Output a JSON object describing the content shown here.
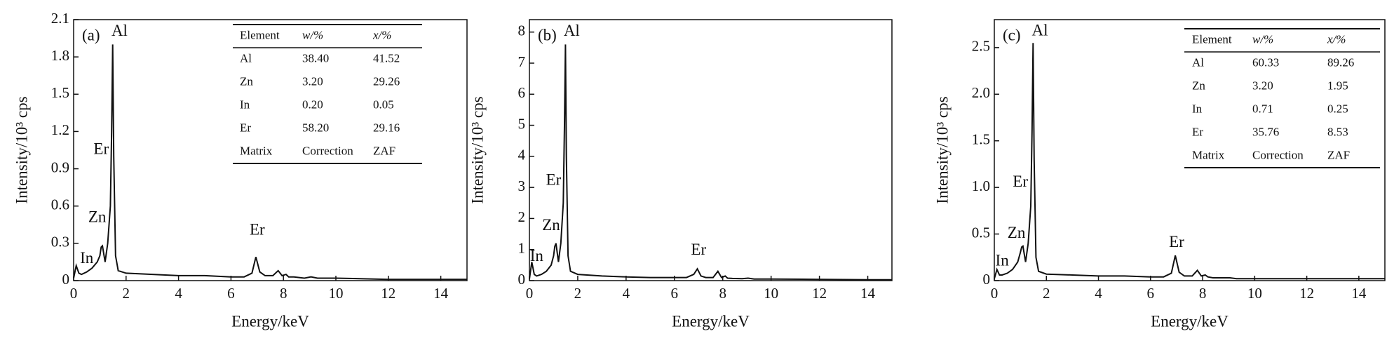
{
  "chart_data": [
    {
      "type": "line",
      "panel_label": "(a)",
      "x_label": "Energy/keV",
      "y_label": "Intensity/10³ cps",
      "color": "#111111",
      "x": [
        0,
        0.1,
        0.2,
        0.3,
        0.5,
        0.7,
        0.9,
        1.0,
        1.05,
        1.1,
        1.2,
        1.3,
        1.4,
        1.45,
        1.49,
        1.53,
        1.6,
        1.7,
        2,
        3,
        4,
        5,
        6,
        6.5,
        6.8,
        6.95,
        7.1,
        7.3,
        7.6,
        7.8,
        7.95,
        8.1,
        8.2,
        8.4,
        8.8,
        9.05,
        9.3,
        10,
        12,
        14,
        15
      ],
      "values": [
        0.02,
        0.12,
        0.06,
        0.05,
        0.07,
        0.1,
        0.15,
        0.2,
        0.27,
        0.28,
        0.15,
        0.3,
        0.6,
        1.2,
        1.9,
        1.0,
        0.2,
        0.08,
        0.06,
        0.05,
        0.04,
        0.04,
        0.03,
        0.03,
        0.06,
        0.19,
        0.07,
        0.04,
        0.04,
        0.08,
        0.04,
        0.05,
        0.03,
        0.03,
        0.02,
        0.03,
        0.02,
        0.02,
        0.01,
        0.01,
        0.01
      ],
      "xlim": [
        0,
        15
      ],
      "xticks": [
        0,
        2,
        4,
        6,
        8,
        10,
        12,
        14
      ],
      "ylim": [
        0,
        2.1
      ],
      "yticks": [
        0,
        0.3,
        0.6,
        0.9,
        1.2,
        1.5,
        1.8,
        2.1
      ],
      "annotations": [
        "Al",
        "Er",
        "Zn",
        "In",
        "Er"
      ],
      "table": {
        "header": [
          "Element",
          "w/%",
          "x/%"
        ],
        "rows": [
          [
            "Al",
            "38.40",
            "41.52"
          ],
          [
            "Zn",
            "3.20",
            "29.26"
          ],
          [
            "In",
            "0.20",
            "0.05"
          ],
          [
            "Er",
            "58.20",
            "29.16"
          ],
          [
            "Matrix",
            "Correction",
            "ZAF"
          ]
        ]
      }
    },
    {
      "type": "line",
      "panel_label": "(b)",
      "x_label": "Energy/keV",
      "y_label": "Intensity/10³ cps",
      "color": "#111111",
      "x": [
        0,
        0.1,
        0.2,
        0.3,
        0.5,
        0.7,
        0.9,
        1.0,
        1.05,
        1.1,
        1.2,
        1.3,
        1.4,
        1.45,
        1.49,
        1.53,
        1.6,
        1.7,
        2,
        3,
        4,
        5,
        6,
        6.5,
        6.8,
        6.95,
        7.1,
        7.3,
        7.6,
        7.8,
        7.95,
        8.1,
        8.2,
        8.4,
        8.8,
        9.05,
        9.3,
        10,
        12,
        14,
        15
      ],
      "values": [
        0.05,
        0.6,
        0.2,
        0.15,
        0.2,
        0.3,
        0.5,
        0.8,
        1.1,
        1.2,
        0.6,
        1.2,
        2.5,
        5,
        7.6,
        4,
        0.8,
        0.3,
        0.2,
        0.15,
        0.12,
        0.1,
        0.1,
        0.1,
        0.2,
        0.38,
        0.15,
        0.1,
        0.1,
        0.3,
        0.1,
        0.15,
        0.08,
        0.07,
        0.06,
        0.08,
        0.05,
        0.05,
        0.04,
        0.03,
        0.03
      ],
      "xlim": [
        0,
        15
      ],
      "xticks": [
        0,
        2,
        4,
        6,
        8,
        10,
        12,
        14
      ],
      "ylim": [
        0,
        8.4
      ],
      "yticks": [
        0,
        1,
        2,
        3,
        4,
        5,
        6,
        7,
        8
      ],
      "annotations": [
        "Al",
        "Er",
        "Zn",
        "In",
        "Er"
      ]
    },
    {
      "type": "line",
      "panel_label": "(c)",
      "x_label": "Energy/keV",
      "y_label": "Intensity/10³ cps",
      "color": "#111111",
      "x": [
        0,
        0.1,
        0.2,
        0.3,
        0.5,
        0.7,
        0.9,
        1.0,
        1.05,
        1.1,
        1.2,
        1.3,
        1.4,
        1.45,
        1.49,
        1.53,
        1.6,
        1.7,
        2,
        3,
        4,
        5,
        6,
        6.5,
        6.8,
        6.95,
        7.1,
        7.3,
        7.6,
        7.8,
        7.95,
        8.1,
        8.2,
        8.4,
        8.8,
        9.05,
        9.3,
        10,
        12,
        14,
        15
      ],
      "values": [
        0.02,
        0.12,
        0.06,
        0.06,
        0.08,
        0.12,
        0.2,
        0.3,
        0.36,
        0.37,
        0.2,
        0.4,
        0.8,
        1.6,
        2.55,
        1.3,
        0.25,
        0.1,
        0.07,
        0.06,
        0.05,
        0.05,
        0.04,
        0.04,
        0.08,
        0.27,
        0.09,
        0.05,
        0.05,
        0.11,
        0.05,
        0.06,
        0.04,
        0.03,
        0.03,
        0.03,
        0.02,
        0.02,
        0.02,
        0.02,
        0.02
      ],
      "xlim": [
        0,
        15
      ],
      "xticks": [
        0,
        2,
        4,
        6,
        8,
        10,
        12,
        14
      ],
      "ylim": [
        0,
        2.8
      ],
      "yticks": [
        0,
        0.5,
        {
          "value": 1,
          "label": "1.0"
        },
        1.5,
        {
          "value": 2,
          "label": "2.0"
        },
        2.5
      ],
      "annotations": [
        "Al",
        "Er",
        "Zn",
        "In",
        "Er"
      ],
      "table": {
        "header": [
          "Element",
          "w/%",
          "x/%"
        ],
        "rows": [
          [
            "Al",
            "60.33",
            "89.26"
          ],
          [
            "Zn",
            "3.20",
            "1.95"
          ],
          [
            "In",
            "0.71",
            "0.25"
          ],
          [
            "Er",
            "35.76",
            "8.53"
          ],
          [
            "Matrix",
            "Correction",
            "ZAF"
          ]
        ]
      }
    }
  ]
}
